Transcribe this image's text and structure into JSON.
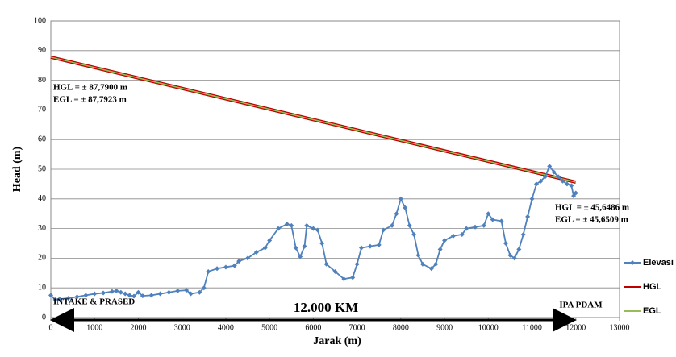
{
  "chart_data": {
    "type": "line",
    "xlabel": "Jarak (m)",
    "ylabel": "Head  (m)",
    "xlim": [
      0,
      13000
    ],
    "xticks": [
      0,
      1000,
      2000,
      3000,
      4000,
      5000,
      6000,
      7000,
      8000,
      9000,
      10000,
      11000,
      12000,
      13000
    ],
    "ylim": [
      0,
      100
    ],
    "yticks": [
      0,
      10,
      20,
      30,
      40,
      50,
      60,
      70,
      80,
      90,
      100
    ],
    "grid": true,
    "legend": "right",
    "series": [
      {
        "name": "Elevasi",
        "color": "#4f81bd",
        "x": [
          0,
          100,
          200,
          400,
          600,
          800,
          1000,
          1200,
          1400,
          1500,
          1600,
          1700,
          1800,
          1900,
          2000,
          2100,
          2300,
          2500,
          2700,
          2900,
          3100,
          3200,
          3400,
          3500,
          3600,
          3800,
          4000,
          4200,
          4300,
          4500,
          4700,
          4900,
          5000,
          5200,
          5400,
          5500,
          5600,
          5700,
          5800,
          5850,
          6000,
          6100,
          6200,
          6300,
          6500,
          6700,
          6900,
          7000,
          7100,
          7300,
          7500,
          7600,
          7800,
          7900,
          8000,
          8100,
          8200,
          8300,
          8400,
          8500,
          8700,
          8800,
          8900,
          9000,
          9200,
          9400,
          9500,
          9700,
          9900,
          10000,
          10100,
          10300,
          10400,
          10500,
          10600,
          10700,
          10800,
          10900,
          11000,
          11100,
          11200,
          11300,
          11400,
          11500,
          11600,
          11700,
          11800,
          11900,
          11950,
          12000
        ],
        "values": [
          7.5,
          6,
          6.2,
          6.5,
          7,
          7.5,
          8,
          8.3,
          8.8,
          9,
          8.5,
          8,
          7.5,
          7.2,
          8.5,
          7.3,
          7.5,
          8,
          8.5,
          9,
          9.2,
          8,
          8.5,
          10,
          15.5,
          16.5,
          17,
          17.5,
          19,
          20,
          22,
          23.5,
          26,
          30,
          31.5,
          31,
          23.5,
          20.5,
          24,
          31,
          30,
          29.5,
          25,
          18,
          15.5,
          13,
          13.5,
          18,
          23.5,
          24,
          24.5,
          29.5,
          31,
          35,
          40,
          37,
          31,
          28,
          21,
          18,
          16.5,
          18,
          23,
          26,
          27.5,
          28,
          30,
          30.5,
          31,
          35,
          33,
          32.5,
          25,
          21,
          20,
          23,
          28,
          34,
          40,
          45,
          46,
          47.5,
          51,
          49,
          47.5,
          46,
          45,
          44.5,
          41,
          42
        ]
      },
      {
        "name": "HGL",
        "color": "#c00000",
        "x": [
          0,
          12000
        ],
        "values": [
          87.79,
          45.6486
        ]
      },
      {
        "name": "EGL",
        "color": "#9bbb59",
        "x": [
          0,
          12000
        ],
        "values": [
          87.7923,
          45.6509
        ]
      }
    ],
    "annotations": [
      "HGL = ± 87,7900 m",
      "EGL = ± 87,7923 m",
      "HGL = ± 45,6486 m",
      "EGL = ± 45,6509 m",
      "INTAKE & PRASED",
      "12.000 KM",
      "IPA PDAM"
    ]
  }
}
